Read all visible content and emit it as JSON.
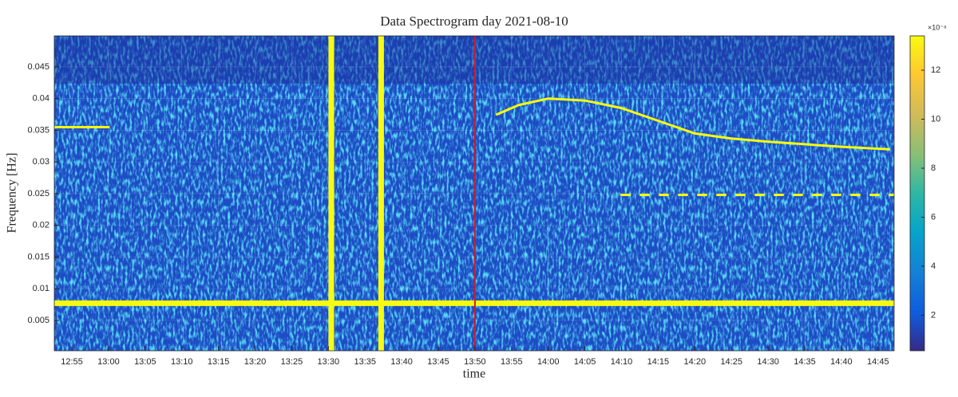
{
  "chart_data": {
    "type": "spectrogram",
    "title": "Data Spectrogram day 2021-08-10",
    "x_label": "time",
    "y_label": "Frequency [Hz]",
    "xlim": [
      772.6,
      887.2
    ],
    "xticks": [
      {
        "value": 775,
        "label": "12:55"
      },
      {
        "value": 780,
        "label": "13:00"
      },
      {
        "value": 785,
        "label": "13:05"
      },
      {
        "value": 790,
        "label": "13:10"
      },
      {
        "value": 795,
        "label": "13:15"
      },
      {
        "value": 800,
        "label": "13:20"
      },
      {
        "value": 805,
        "label": "13:25"
      },
      {
        "value": 810,
        "label": "13:30"
      },
      {
        "value": 815,
        "label": "13:35"
      },
      {
        "value": 820,
        "label": "13:40"
      },
      {
        "value": 825,
        "label": "13:45"
      },
      {
        "value": 830,
        "label": "13:50"
      },
      {
        "value": 835,
        "label": "13:55"
      },
      {
        "value": 840,
        "label": "14:00"
      },
      {
        "value": 845,
        "label": "14:05"
      },
      {
        "value": 850,
        "label": "14:10"
      },
      {
        "value": 855,
        "label": "14:15"
      },
      {
        "value": 860,
        "label": "14:20"
      },
      {
        "value": 865,
        "label": "14:25"
      },
      {
        "value": 870,
        "label": "14:30"
      },
      {
        "value": 875,
        "label": "14:35"
      },
      {
        "value": 880,
        "label": "14:40"
      },
      {
        "value": 885,
        "label": "14:45"
      }
    ],
    "ylim": [
      0.0002,
      0.0499
    ],
    "yticks": [
      0.005,
      0.01,
      0.015,
      0.02,
      0.025,
      0.03,
      0.035,
      0.04,
      0.045
    ],
    "grid": true,
    "colorbar": {
      "lim": [
        0.55,
        13.4
      ],
      "ticks": [
        2,
        4,
        6,
        8,
        10,
        12
      ],
      "exponent_label": "×10⁻⁸"
    },
    "traces": [
      {
        "color": "#f9fb0e",
        "x": [
          772.6,
          887.2
        ],
        "values": [
          0.0077,
          0.0077
        ]
      },
      {
        "color": "#f9fb0e",
        "x": [
          772.6,
          780
        ],
        "values": [
          0.0355,
          0.0355
        ]
      },
      {
        "color": "#f9fb0e",
        "x": [
          833,
          836,
          840,
          845,
          850,
          855,
          860,
          865,
          870,
          875,
          880,
          886.5
        ],
        "values": [
          0.0375,
          0.039,
          0.04,
          0.0397,
          0.0385,
          0.0365,
          0.0345,
          0.0337,
          0.0332,
          0.0328,
          0.0324,
          0.032
        ]
      },
      {
        "color": "#f9fb0e",
        "x": [
          850,
          887.2
        ],
        "values": [
          0.0248,
          0.0248
        ]
      }
    ],
    "vertical_lines": [
      {
        "x": 810.4,
        "color": "#f9fb0e"
      },
      {
        "x": 817.2,
        "color": "#f9fb0e"
      },
      {
        "x": 830,
        "color": "#d7191c"
      }
    ]
  }
}
